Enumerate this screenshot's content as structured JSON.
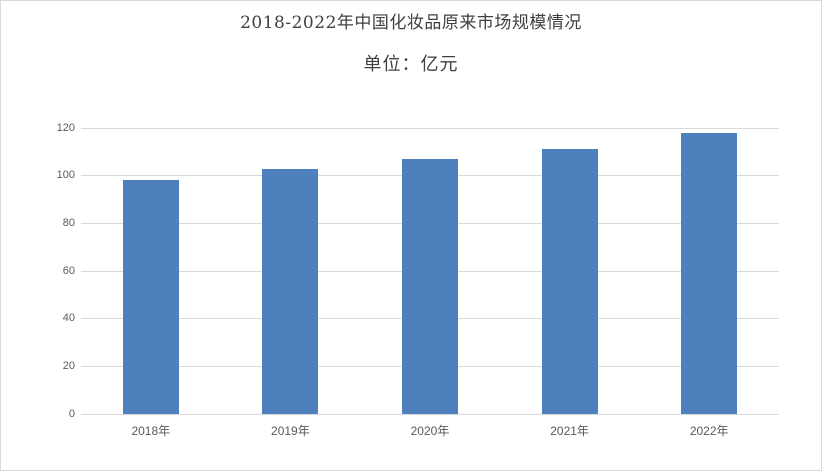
{
  "page": {
    "background": "#ffffff",
    "frame_border_color": "#d9d9d9"
  },
  "chart": {
    "title": "2018-2022年中国化妆品原来市场规模情况",
    "subtitle": "单位：亿元"
  },
  "chart_data": {
    "type": "bar",
    "title": "2018-2022年中国化妆品原来市场规模情况",
    "subtitle": "单位：亿元",
    "categories": [
      "2018年",
      "2019年",
      "2020年",
      "2021年",
      "2022年"
    ],
    "values": [
      98,
      103,
      107,
      111,
      118
    ],
    "xlabel": "",
    "ylabel": "",
    "ylim": [
      0,
      120
    ],
    "yticks": [
      0,
      20,
      40,
      60,
      80,
      100,
      120
    ],
    "grid": true,
    "legend_position": "none",
    "bar_color": "#4e80bd",
    "gridline_color": "#d9d9d9",
    "axis_line_color": "#d9d9d9",
    "axis_label_color": "#595959",
    "title_color": "#404040"
  }
}
